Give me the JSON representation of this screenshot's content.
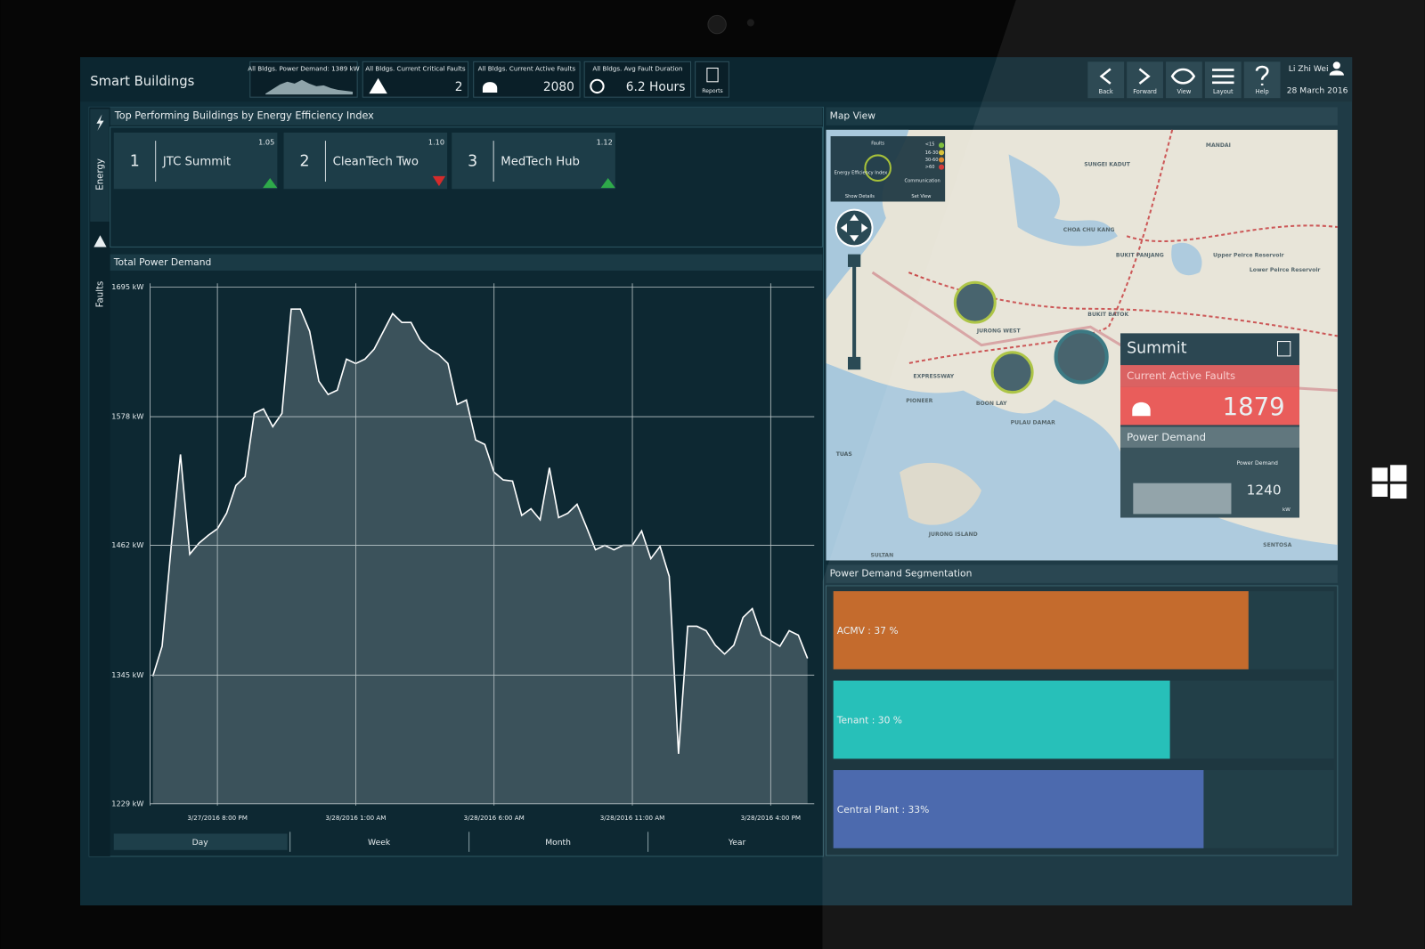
{
  "header": {
    "app_title": "Smart Buildings",
    "kpis": [
      {
        "label": "All Bldgs. Power Demand: 1389 kW"
      },
      {
        "label": "All Bldgs. Current Critical Faults",
        "value": 2
      },
      {
        "label": "All Bldgs. Current Active Faults",
        "value": 2080
      },
      {
        "label": "All Bldgs. Avg Fault Duration",
        "value": "6.2 Hours"
      }
    ],
    "reports": "Reports",
    "nav": [
      "Back",
      "Forward",
      "View",
      "Layout",
      "Help"
    ],
    "user": "Li Zhi Wei",
    "date": "28 March 2016"
  },
  "side_tabs": [
    "Energy",
    "Faults"
  ],
  "ranking": {
    "title": "Top Performing Buildings by Energy Efficiency Index",
    "items": [
      {
        "rank": 1,
        "name": "JTC Summit",
        "value": "1.05",
        "trend": "up"
      },
      {
        "rank": 2,
        "name": "CleanTech Two",
        "value": "1.10",
        "trend": "down"
      },
      {
        "rank": 3,
        "name": "MedTech Hub",
        "value": "1.12",
        "trend": "up"
      }
    ]
  },
  "chart_data": {
    "type": "area",
    "title": "Total Power Demand",
    "color": "#ffffff",
    "fill": "#3b525b",
    "categories": [
      null,
      null,
      null,
      null,
      null,
      null,
      null,
      "3/27/2016 8:00 PM",
      null,
      null,
      null,
      null,
      null,
      null,
      null,
      null,
      null,
      null,
      null,
      null,
      null,
      null,
      "3/28/2016 1:00 AM",
      null,
      null,
      null,
      null,
      null,
      null,
      null,
      null,
      null,
      null,
      null,
      null,
      null,
      null,
      "3/28/2016 6:00 AM",
      null,
      null,
      null,
      null,
      null,
      null,
      null,
      null,
      null,
      null,
      null,
      null,
      null,
      null,
      "3/28/2016 11:00 AM",
      null,
      null,
      null,
      null,
      null,
      null,
      null,
      null,
      null,
      null,
      null,
      null,
      null,
      null,
      "3/28/2016 4:00 PM",
      null,
      null,
      null,
      null
    ],
    "values": [
      1344,
      1371,
      1462,
      1544,
      1454,
      1464,
      1471,
      1477,
      1491,
      1516,
      1524,
      1581,
      1585,
      1569,
      1581,
      1675,
      1675,
      1655,
      1610,
      1598,
      1602,
      1630,
      1626,
      1630,
      1639,
      1655,
      1671,
      1663,
      1663,
      1647,
      1639,
      1634,
      1626,
      1589,
      1593,
      1557,
      1553,
      1528,
      1521,
      1520,
      1489,
      1495,
      1485,
      1532,
      1487,
      1491,
      1499,
      1479,
      1458,
      1462,
      1458,
      1462,
      1462,
      1475,
      1450,
      1461,
      1434,
      1274,
      1389,
      1389,
      1385,
      1372,
      1364,
      1372,
      1397,
      1405,
      1381,
      1376,
      1371,
      1385,
      1381,
      1360
    ],
    "ylim": [
      1229,
      1695
    ],
    "yticks": [
      {
        "value": 1229,
        "label": "1229 kW"
      },
      {
        "value": 1345,
        "label": "1345 kW"
      },
      {
        "value": 1462,
        "label": "1462 kW"
      },
      {
        "value": 1578,
        "label": "1578 kW"
      },
      {
        "value": 1695,
        "label": "1695 kW"
      }
    ],
    "grid": true
  },
  "time_ranges": {
    "options": [
      "Day",
      "Week",
      "Month",
      "Year"
    ],
    "selected": 0
  },
  "map": {
    "title": "Map View",
    "legend": [
      "Faults",
      "Energy Efficiency Index",
      "Communication",
      "<15",
      "16-30",
      "30-60",
      ">60",
      "Show Details",
      "Set View"
    ],
    "places": [
      "MANDAI",
      "SUNGEI KADUT",
      "CHOA CHU KANG",
      "BUKIT PANJANG",
      "Upper Peirce Reservoir",
      "Lower Peirce Reservoir",
      "BUKIT BATOK",
      "JURONG WEST",
      "EXPRESSWAY",
      "PIONEER",
      "BOON LAY",
      "PULAU DAMAR",
      "TUAS",
      "JURONG ISLAND",
      "SENTOSA",
      "SULTAN"
    ],
    "popup": {
      "title": "Summit",
      "faults_label": "Current Active Faults",
      "faults_value": 1879,
      "power_label": "Power Demand",
      "power_small_label": "Power Demand",
      "power_value": 1240,
      "power_unit": "kW"
    }
  },
  "segmentation": {
    "title": "Power Demand Segmentation",
    "labels": [
      "ACMV : 37 %",
      "Tenant : 30 %",
      "Central Plant : 33%"
    ],
    "values": [
      37,
      30,
      33
    ],
    "colors": [
      "#c0601e",
      "#17bcb4",
      "#3f5fa8"
    ]
  }
}
